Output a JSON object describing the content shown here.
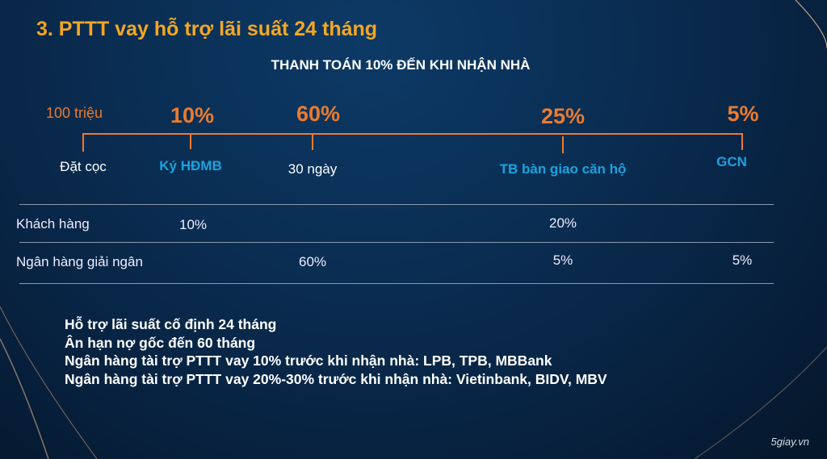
{
  "title": "3. PTTT vay hỗ trợ lãi suất 24 tháng",
  "subtitle": "THANH TOÁN 10% ĐẾN KHI NHẬN NHÀ",
  "timeline": {
    "deposit_amount": "100 triệu",
    "milestones": [
      {
        "percent": "",
        "label": "Đặt cọc"
      },
      {
        "percent": "10%",
        "label": "Ký HĐMB"
      },
      {
        "percent": "60%",
        "label": "30 ngày"
      },
      {
        "percent": "25%",
        "label": "TB bàn giao căn hộ"
      },
      {
        "percent": "5%",
        "label": "GCN"
      }
    ]
  },
  "table": {
    "rows": [
      {
        "label": "Khách hàng",
        "values": [
          "10%",
          "",
          "20%",
          ""
        ]
      },
      {
        "label": "Ngân hàng giải ngân",
        "values": [
          "",
          "60%",
          "5%",
          "5%"
        ]
      }
    ]
  },
  "notes": [
    "Hỗ trợ lãi suất cố định 24 tháng",
    "Ân hạn nợ gốc đến 60 tháng",
    "Ngân hàng tài trợ PTTT vay 10% trước khi nhận nhà: LPB, TPB, MBBank",
    "Ngân hàng tài trợ PTTT vay 20%-30% trước khi nhận nhà: Vietinbank, BIDV, MBV"
  ],
  "watermark": "5giay.vn",
  "colors": {
    "accent_orange": "#ec7b2e",
    "title_gold": "#f5a623",
    "stage_blue": "#1aa3e0",
    "background": "#0a2d52"
  }
}
